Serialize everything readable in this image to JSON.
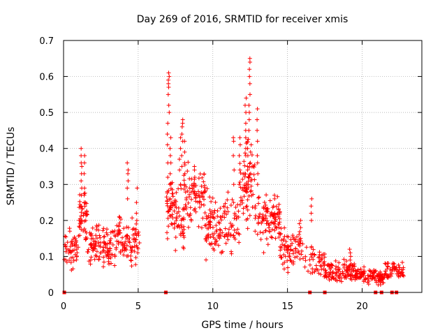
{
  "chart_data": {
    "type": "scatter",
    "title": "Day 269 of 2016, SRMTID for receiver xmis",
    "xlabel": "GPS time / hours",
    "ylabel": "SRMTID / TECUs",
    "xlim": [
      0,
      24
    ],
    "ylim": [
      0,
      0.7
    ],
    "xticks": [
      0,
      5,
      10,
      15,
      20
    ],
    "yticks": [
      0,
      0.1,
      0.2,
      0.3,
      0.4,
      0.5,
      0.6,
      0.7
    ],
    "grid": true,
    "marker": "+",
    "color": "#ff0000",
    "series": [
      {
        "name": "SRMTID",
        "segments": [
          {
            "x0": 0.05,
            "x1": 1.0,
            "base": 0.12,
            "spread": 0.04,
            "count": 50
          },
          {
            "x0": 1.0,
            "x1": 1.6,
            "base": 0.2,
            "spread": 0.06,
            "count": 45
          },
          {
            "x0": 1.6,
            "x1": 3.5,
            "base": 0.13,
            "spread": 0.04,
            "count": 110
          },
          {
            "x0": 3.5,
            "x1": 5.1,
            "base": 0.15,
            "spread": 0.05,
            "count": 90
          },
          {
            "x0": 6.9,
            "x1": 7.3,
            "base": 0.24,
            "spread": 0.06,
            "count": 35
          },
          {
            "x0": 7.3,
            "x1": 8.1,
            "base": 0.22,
            "spread": 0.07,
            "count": 55
          },
          {
            "x0": 8.1,
            "x1": 9.5,
            "base": 0.27,
            "spread": 0.06,
            "count": 80
          },
          {
            "x0": 9.5,
            "x1": 11.8,
            "base": 0.19,
            "spread": 0.06,
            "count": 130
          },
          {
            "x0": 11.8,
            "x1": 12.8,
            "base": 0.3,
            "spread": 0.08,
            "count": 70
          },
          {
            "x0": 12.8,
            "x1": 14.5,
            "base": 0.2,
            "spread": 0.05,
            "count": 100
          },
          {
            "x0": 14.5,
            "x1": 16.0,
            "base": 0.12,
            "spread": 0.04,
            "count": 80
          },
          {
            "x0": 16.0,
            "x1": 17.5,
            "base": 0.09,
            "spread": 0.04,
            "count": 50
          },
          {
            "x0": 17.5,
            "x1": 19.5,
            "base": 0.06,
            "spread": 0.02,
            "count": 110
          },
          {
            "x0": 19.5,
            "x1": 21.5,
            "base": 0.045,
            "spread": 0.015,
            "count": 110
          },
          {
            "x0": 21.5,
            "x1": 22.8,
            "base": 0.06,
            "spread": 0.02,
            "count": 60
          }
        ],
        "peaks": [
          {
            "x": 1.2,
            "values": [
              0.24,
              0.27,
              0.29,
              0.31,
              0.33,
              0.35,
              0.36,
              0.38,
              0.4
            ]
          },
          {
            "x": 1.4,
            "values": [
              0.25,
              0.27,
              0.29,
              0.33,
              0.36,
              0.38
            ]
          },
          {
            "x": 4.3,
            "values": [
              0.26,
              0.29,
              0.31,
              0.33,
              0.34,
              0.36
            ]
          },
          {
            "x": 4.9,
            "values": [
              0.2,
              0.22,
              0.25,
              0.29
            ]
          },
          {
            "x": 6.95,
            "values": [
              0.28,
              0.32,
              0.36,
              0.41,
              0.44,
              0.47
            ]
          },
          {
            "x": 7.05,
            "values": [
              0.5,
              0.52,
              0.55,
              0.57,
              0.58,
              0.59,
              0.6,
              0.61
            ]
          },
          {
            "x": 7.15,
            "values": [
              0.3,
              0.33,
              0.36,
              0.38,
              0.4,
              0.43
            ]
          },
          {
            "x": 7.8,
            "values": [
              0.3,
              0.34,
              0.37,
              0.4,
              0.43
            ]
          },
          {
            "x": 7.95,
            "values": [
              0.35,
              0.38,
              0.42,
              0.44,
              0.46,
              0.47,
              0.48
            ]
          },
          {
            "x": 8.1,
            "values": [
              0.3,
              0.33,
              0.36,
              0.39,
              0.42
            ]
          },
          {
            "x": 8.8,
            "values": [
              0.28,
              0.3,
              0.32,
              0.34,
              0.35
            ]
          },
          {
            "x": 11.4,
            "values": [
              0.25,
              0.3,
              0.34,
              0.38,
              0.42,
              0.43
            ]
          },
          {
            "x": 11.8,
            "values": [
              0.3,
              0.34,
              0.38,
              0.41,
              0.43
            ]
          },
          {
            "x": 12.2,
            "values": [
              0.38,
              0.4,
              0.43,
              0.45,
              0.47,
              0.5,
              0.52,
              0.54
            ]
          },
          {
            "x": 12.35,
            "values": [
              0.3,
              0.34,
              0.38,
              0.4,
              0.42
            ]
          },
          {
            "x": 12.45,
            "values": [
              0.45,
              0.48,
              0.5,
              0.52,
              0.55,
              0.58,
              0.6,
              0.62,
              0.64,
              0.65
            ]
          },
          {
            "x": 12.55,
            "values": [
              0.33,
              0.36,
              0.39,
              0.41
            ]
          },
          {
            "x": 13.0,
            "values": [
              0.3,
              0.33,
              0.36,
              0.38,
              0.42,
              0.45,
              0.48,
              0.51
            ]
          },
          {
            "x": 14.1,
            "values": [
              0.22,
              0.24,
              0.26,
              0.27
            ]
          },
          {
            "x": 16.6,
            "values": [
              0.2,
              0.22,
              0.24,
              0.26
            ]
          },
          {
            "x": 15.9,
            "values": [
              0.15,
              0.18,
              0.2
            ]
          },
          {
            "x": 19.2,
            "values": [
              0.09,
              0.1,
              0.11,
              0.12
            ]
          }
        ],
        "zero_points": [
          0.05,
          6.85,
          16.5,
          17.5,
          20.9,
          21.3,
          22.0,
          22.3
        ]
      }
    ]
  }
}
